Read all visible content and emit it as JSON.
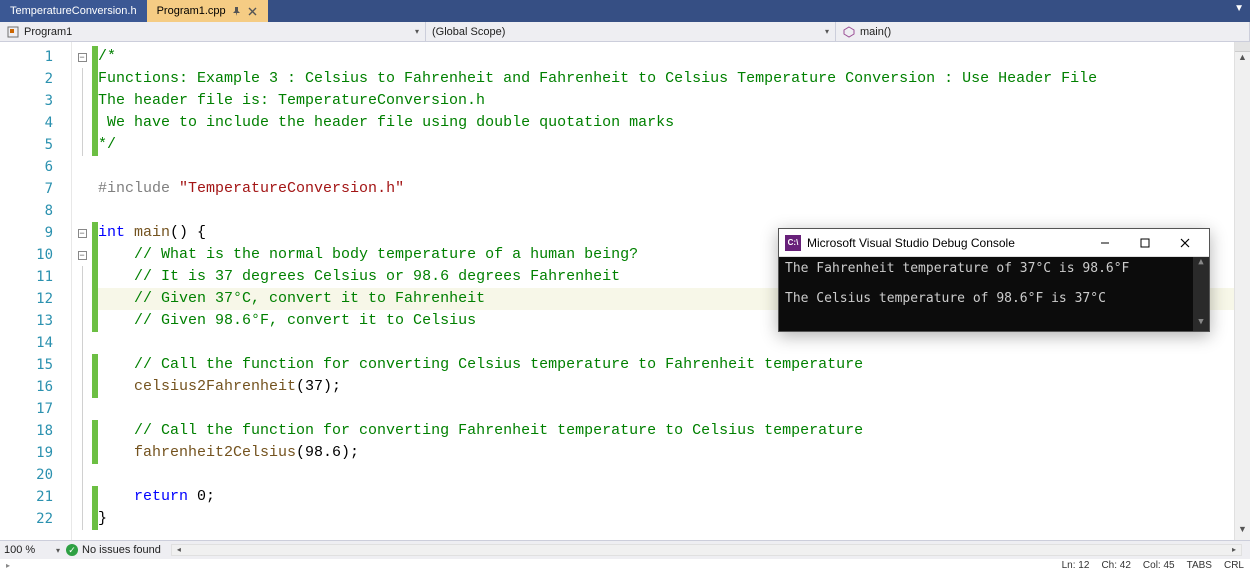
{
  "tabs": {
    "inactive": "TemperatureConversion.h",
    "active": "Program1.cpp"
  },
  "nav": {
    "project": "Program1",
    "scope": "(Global Scope)",
    "function": "main()"
  },
  "code": {
    "lines": [
      {
        "n": 1,
        "fold": "box",
        "change": true,
        "html": "<span class='c-comment'>/*</span>"
      },
      {
        "n": 2,
        "change": true,
        "html": "<span class='c-comment'>Functions: Example 3 : Celsius to Fahrenheit and Fahrenheit to Celsius Temperature Conversion : Use Header File</span>"
      },
      {
        "n": 3,
        "change": true,
        "html": "<span class='c-comment'>The header file is: TemperatureConversion.h</span>"
      },
      {
        "n": 4,
        "change": true,
        "html": " <span class='c-comment'>We have to include the header file using double quotation marks</span>"
      },
      {
        "n": 5,
        "change": true,
        "html": "<span class='c-comment'>*/</span>"
      },
      {
        "n": 6,
        "html": ""
      },
      {
        "n": 7,
        "html": "<span class='c-pre'>#include</span> <span class='c-string'>\"TemperatureConversion.h\"</span>"
      },
      {
        "n": 8,
        "html": ""
      },
      {
        "n": 9,
        "fold": "box",
        "change": true,
        "html": "<span class='c-type'>int</span> <span class='c-func'>main</span>() {"
      },
      {
        "n": 10,
        "fold": "box",
        "change": true,
        "indent": 1,
        "html": "    <span class='c-comment'>// What is the normal body temperature of a human being?</span>"
      },
      {
        "n": 11,
        "change": true,
        "indent": 1,
        "html": "    <span class='c-comment'>// It is 37 degrees Celsius or 98.6 degrees Fahrenheit</span>"
      },
      {
        "n": 12,
        "change": true,
        "indent": 1,
        "current": true,
        "html": "    <span class='c-comment'>// Given 37°C, convert it to Fahrenheit</span>"
      },
      {
        "n": 13,
        "change": true,
        "indent": 1,
        "html": "    <span class='c-comment'>// Given 98.6°F, convert it to Celsius</span>"
      },
      {
        "n": 14,
        "indent": 1,
        "html": ""
      },
      {
        "n": 15,
        "change": true,
        "indent": 1,
        "html": "    <span class='c-comment'>// Call the function for converting Celsius temperature to Fahrenheit temperature</span>"
      },
      {
        "n": 16,
        "change": true,
        "indent": 1,
        "html": "    <span class='c-func'>celsius2Fahrenheit</span>(37);"
      },
      {
        "n": 17,
        "indent": 1,
        "html": ""
      },
      {
        "n": 18,
        "change": true,
        "indent": 1,
        "html": "    <span class='c-comment'>// Call the function for converting Fahrenheit temperature to Celsius temperature</span>"
      },
      {
        "n": 19,
        "change": true,
        "indent": 1,
        "html": "    <span class='c-func'>fahrenheit2Celsius</span>(98.6);"
      },
      {
        "n": 20,
        "indent": 1,
        "html": ""
      },
      {
        "n": 21,
        "change": true,
        "indent": 1,
        "html": "    <span class='c-keyword'>return</span> 0;"
      },
      {
        "n": 22,
        "change": true,
        "html": "}"
      }
    ]
  },
  "status": {
    "zoom": "100 %",
    "issues": "No issues found",
    "ln": "Ln: 12",
    "ch": "Ch: 42",
    "col": "Col: 45",
    "tabs": "TABS",
    "crlf": "CRL"
  },
  "console": {
    "title": "Microsoft Visual Studio Debug Console",
    "line1": "The Fahrenheit temperature of 37°C is 98.6°F",
    "line2": "The Celsius temperature of 98.6°F is 37°C",
    "appicon": "C:\\"
  }
}
